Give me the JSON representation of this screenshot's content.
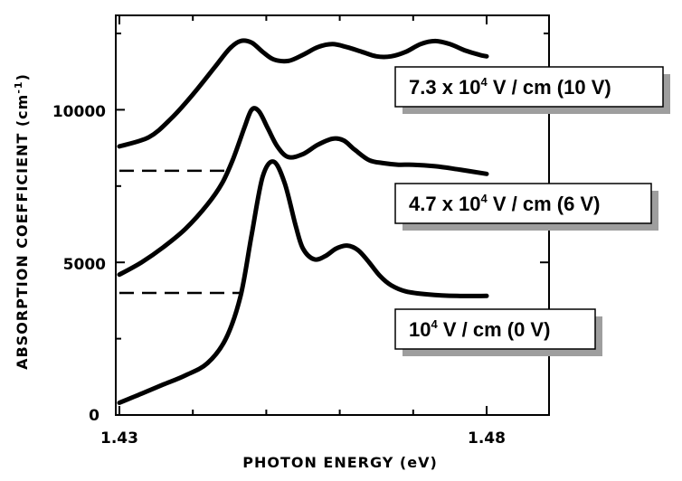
{
  "chart_data": {
    "type": "line",
    "title": "",
    "xlabel": "PHOTON ENERGY (eV)",
    "ylabel": "ABSORPTION COEFFICIENT",
    "ylabel_unit_base": "(cm",
    "ylabel_unit_exp": "-1",
    "ylabel_unit_close": ")",
    "xlim": [
      1.43,
      1.48
    ],
    "ylim": [
      0,
      13600
    ],
    "x_tick_labels": [
      "1.43",
      "1.48"
    ],
    "y_tick_labels": [
      "0",
      "5000",
      "10000"
    ],
    "grid": false,
    "colors": {
      "line": "#000000",
      "legend_border": "#000000",
      "legend_shadow": "#9e9e9e"
    },
    "series": [
      {
        "legend_parts": [
          "7.3 x 10",
          "4",
          " V / cm (10 V)"
        ],
        "baseline": null,
        "x": [
          1.43,
          1.434,
          1.437,
          1.44,
          1.443,
          1.445,
          1.4465,
          1.448,
          1.4495,
          1.451,
          1.453,
          1.455,
          1.457,
          1.459,
          1.461,
          1.463,
          1.465,
          1.467,
          1.469,
          1.471,
          1.473,
          1.475,
          1.477,
          1.479,
          1.48
        ],
        "y": [
          8800,
          9100,
          9700,
          10500,
          11400,
          12000,
          12250,
          12200,
          11900,
          11650,
          11600,
          11800,
          12050,
          12150,
          12050,
          11900,
          11750,
          11750,
          11900,
          12150,
          12250,
          12150,
          11950,
          11800,
          11750
        ]
      },
      {
        "legend_parts": [
          "4.7 x 10",
          "4",
          " V / cm (6 V)"
        ],
        "baseline": {
          "y": 8000,
          "x": [
            1.43,
            1.4445
          ]
        },
        "x": [
          1.43,
          1.433,
          1.436,
          1.439,
          1.442,
          1.444,
          1.4455,
          1.447,
          1.448,
          1.449,
          1.4502,
          1.4515,
          1.453,
          1.455,
          1.457,
          1.459,
          1.4605,
          1.462,
          1.464,
          1.466,
          1.468,
          1.47,
          1.473,
          1.476,
          1.48
        ],
        "y": [
          4600,
          5000,
          5500,
          6100,
          6900,
          7600,
          8400,
          9400,
          10000,
          9950,
          9400,
          8800,
          8450,
          8550,
          8850,
          9050,
          9000,
          8700,
          8350,
          8250,
          8200,
          8200,
          8150,
          8050,
          7900
        ]
      },
      {
        "legend_parts": [
          "10",
          "4",
          " V / cm (0 V)"
        ],
        "baseline": {
          "y": 4000,
          "x": [
            1.43,
            1.4468
          ]
        },
        "x": [
          1.43,
          1.433,
          1.436,
          1.439,
          1.442,
          1.4445,
          1.4465,
          1.448,
          1.4495,
          1.451,
          1.4525,
          1.454,
          1.455,
          1.4565,
          1.458,
          1.4595,
          1.461,
          1.4625,
          1.464,
          1.4655,
          1.467,
          1.469,
          1.472,
          1.476,
          1.48
        ],
        "y": [
          400,
          700,
          1000,
          1300,
          1700,
          2500,
          3900,
          5900,
          7800,
          8300,
          7600,
          6200,
          5450,
          5100,
          5200,
          5450,
          5550,
          5400,
          5000,
          4550,
          4250,
          4050,
          3950,
          3900,
          3900
        ]
      }
    ]
  }
}
